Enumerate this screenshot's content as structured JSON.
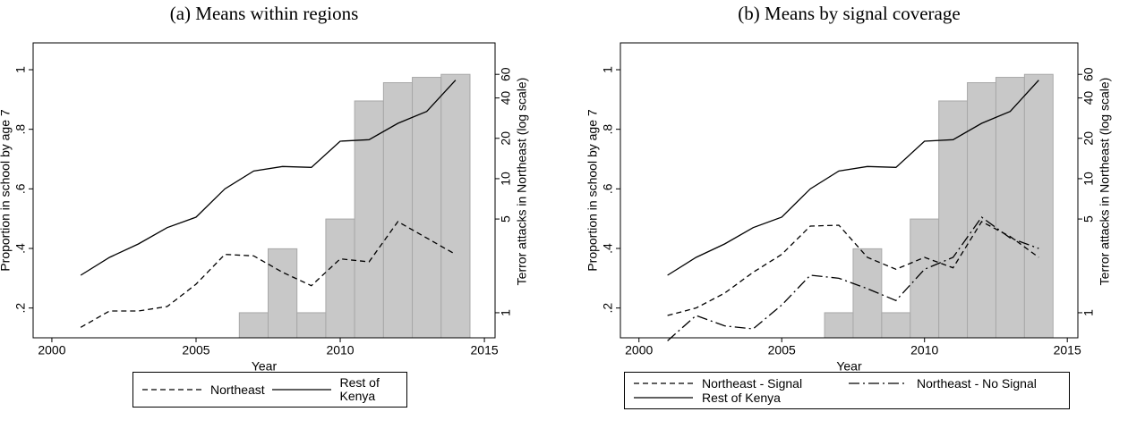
{
  "chart_data": [
    {
      "type": "line",
      "title": "(a) Means within regions",
      "xlabel": "Year",
      "ylabel": "Proportion in school by age 7",
      "y2label": "Terror attacks in Northeast (log scale)",
      "xlim": [
        1999.35,
        2015.37
      ],
      "xticks": [
        2000,
        2005,
        2010,
        2015
      ],
      "ylim": [
        0.1,
        1.09
      ],
      "yticks": [
        {
          "value": 0.2,
          "label": ".2"
        },
        {
          "value": 0.4,
          "label": ".4"
        },
        {
          "value": 0.6,
          "label": ".6"
        },
        {
          "value": 0.8,
          "label": ".8"
        },
        {
          "value": 1,
          "label": "1"
        }
      ],
      "y2lim": [
        0.65,
        103
      ],
      "y2ticks": [
        1,
        5,
        10,
        20,
        40,
        60
      ],
      "y2log": true,
      "legend_columns": 2,
      "bars": {
        "axis": "y2",
        "color": "#c8c8c8",
        "x": [
          2007,
          2008,
          2009,
          2010,
          2011,
          2012,
          2013,
          2014
        ],
        "values": [
          1,
          3,
          1,
          5,
          38,
          52,
          57,
          60
        ]
      },
      "x": [
        2001,
        2002,
        2003,
        2004,
        2005,
        2006,
        2007,
        2008,
        2009,
        2010,
        2011,
        2012,
        2013,
        2014
      ],
      "series": [
        {
          "name": "Northeast",
          "color": "#000000",
          "style": "dashed",
          "values": [
            0.135,
            0.19,
            0.19,
            0.205,
            0.28,
            0.38,
            0.375,
            0.32,
            0.275,
            0.365,
            0.355,
            0.49,
            0.435,
            0.38
          ]
        },
        {
          "name": "Rest of Kenya",
          "color": "#000000",
          "style": "solid",
          "values": [
            0.31,
            0.37,
            0.415,
            0.47,
            0.505,
            0.6,
            0.66,
            0.675,
            0.672,
            0.76,
            0.765,
            0.82,
            0.86,
            0.965
          ]
        }
      ]
    },
    {
      "type": "line",
      "title": "(b) Means by signal coverage",
      "xlabel": "Year",
      "ylabel": "Proportion in school by age 7",
      "y2label": "Terror attacks in Northeast (log scale)",
      "xlim": [
        1999.35,
        2015.37
      ],
      "xticks": [
        2000,
        2005,
        2010,
        2015
      ],
      "ylim": [
        0.1,
        1.09
      ],
      "yticks": [
        {
          "value": 0.2,
          "label": ".2"
        },
        {
          "value": 0.4,
          "label": ".4"
        },
        {
          "value": 0.6,
          "label": ".6"
        },
        {
          "value": 0.8,
          "label": ".8"
        },
        {
          "value": 1,
          "label": "1"
        }
      ],
      "y2lim": [
        0.65,
        103
      ],
      "y2ticks": [
        1,
        5,
        10,
        20,
        40,
        60
      ],
      "y2log": true,
      "legend_columns": 2,
      "bars": {
        "axis": "y2",
        "color": "#c8c8c8",
        "x": [
          2007,
          2008,
          2009,
          2010,
          2011,
          2012,
          2013,
          2014
        ],
        "values": [
          1,
          3,
          1,
          5,
          38,
          52,
          57,
          60
        ]
      },
      "x": [
        2001,
        2002,
        2003,
        2004,
        2005,
        2006,
        2007,
        2008,
        2009,
        2010,
        2011,
        2012,
        2013,
        2014
      ],
      "series": [
        {
          "name": "Northeast - Signal",
          "color": "#000000",
          "style": "dashed",
          "values": [
            0.175,
            0.2,
            0.25,
            0.32,
            0.38,
            0.475,
            0.478,
            0.37,
            0.33,
            0.37,
            0.335,
            0.49,
            0.44,
            0.37
          ]
        },
        {
          "name": "Northeast - No Signal",
          "color": "#000000",
          "style": "dashdot",
          "values": [
            0.09,
            0.175,
            0.14,
            0.13,
            0.21,
            0.31,
            0.3,
            0.265,
            0.225,
            0.33,
            0.37,
            0.505,
            0.435,
            0.4
          ]
        },
        {
          "name": "Rest of Kenya",
          "color": "#000000",
          "style": "solid",
          "values": [
            0.31,
            0.37,
            0.415,
            0.47,
            0.505,
            0.6,
            0.66,
            0.675,
            0.672,
            0.76,
            0.765,
            0.82,
            0.86,
            0.965
          ]
        }
      ]
    }
  ]
}
